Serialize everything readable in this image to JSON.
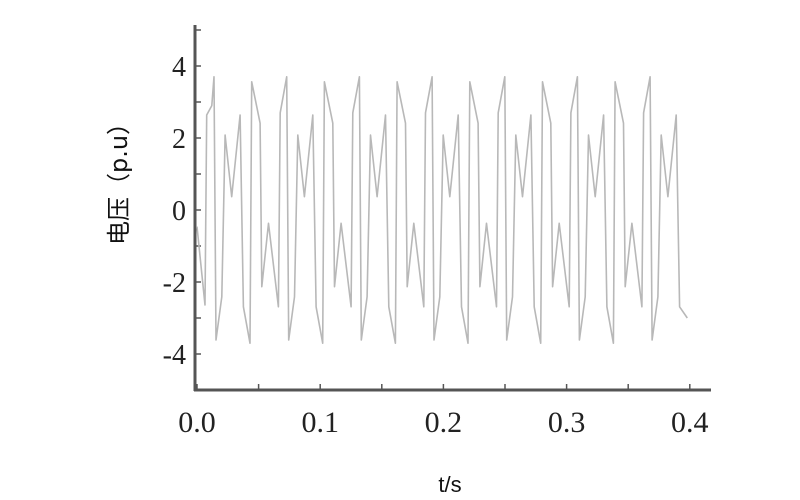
{
  "chart_data": {
    "type": "line",
    "title": "",
    "xlabel": "t/s",
    "ylabel": "电压（p.u）",
    "xlim": [
      0.0,
      0.42
    ],
    "ylim": [
      -5,
      5
    ],
    "x_ticks": [
      "0.0",
      "0.1",
      "0.2",
      "0.3",
      "0.4"
    ],
    "y_ticks": [
      "4",
      "2",
      "0",
      "-2",
      "-4"
    ],
    "grid": false,
    "line_color": "#b8b8b8",
    "series": [
      {
        "x": [
          0.0,
          0.0065,
          0.0079,
          0.012,
          0.0138,
          0.0154,
          0.0201,
          0.0228,
          0.0282,
          0.035,
          0.0377,
          0.043,
          0.0444,
          0.0512,
          0.0526,
          0.058,
          0.0661,
          0.0675,
          0.0728,
          0.0744,
          0.0791,
          0.0818,
          0.0872,
          0.094,
          0.0967,
          0.102,
          0.1034,
          0.1102,
          0.1116,
          0.117,
          0.1251,
          0.1265,
          0.1318,
          0.1334,
          0.1381,
          0.1408,
          0.1462,
          0.153,
          0.1557,
          0.161,
          0.1624,
          0.1692,
          0.1706,
          0.176,
          0.1841,
          0.1855,
          0.1908,
          0.1924,
          0.1971,
          0.1998,
          0.2052,
          0.212,
          0.2147,
          0.22,
          0.2214,
          0.2282,
          0.2296,
          0.235,
          0.2431,
          0.2445,
          0.2498,
          0.2514,
          0.2561,
          0.2588,
          0.2642,
          0.271,
          0.2737,
          0.279,
          0.2804,
          0.2872,
          0.2886,
          0.294,
          0.3021,
          0.3035,
          0.3088,
          0.3104,
          0.3151,
          0.3178,
          0.3232,
          0.33,
          0.3327,
          0.338,
          0.3394,
          0.3462,
          0.3476,
          0.353,
          0.3611,
          0.3625,
          0.3678,
          0.3694,
          0.3741,
          0.3768,
          0.3822,
          0.389,
          0.3917,
          0.398
        ],
        "y": [
          -0.46,
          -2.64,
          2.64,
          2.9,
          3.7,
          -3.61,
          -2.41,
          2.08,
          0.37,
          2.64,
          -2.69,
          -3.7,
          3.56,
          2.41,
          -2.13,
          -0.37,
          -2.69,
          2.7,
          3.7,
          -3.61,
          -2.41,
          2.08,
          0.37,
          2.64,
          -2.69,
          -3.7,
          3.56,
          2.41,
          -2.13,
          -0.37,
          -2.69,
          2.7,
          3.7,
          -3.61,
          -2.41,
          2.08,
          0.37,
          2.64,
          -2.69,
          -3.7,
          3.56,
          2.41,
          -2.13,
          -0.37,
          -2.69,
          2.7,
          3.7,
          -3.61,
          -2.41,
          2.08,
          0.37,
          2.64,
          -2.69,
          -3.7,
          3.56,
          2.41,
          -2.13,
          -0.37,
          -2.69,
          2.7,
          3.7,
          -3.61,
          -2.41,
          2.08,
          0.37,
          2.64,
          -2.69,
          -3.7,
          3.56,
          2.41,
          -2.13,
          -0.37,
          -2.69,
          2.7,
          3.7,
          -3.61,
          -2.41,
          2.08,
          0.37,
          2.64,
          -2.69,
          -3.7,
          3.56,
          2.41,
          -2.13,
          -0.37,
          -2.69,
          2.7,
          3.7,
          -3.61,
          -2.41,
          2.08,
          0.37,
          2.64,
          -2.69,
          -3.0
        ]
      }
    ]
  }
}
